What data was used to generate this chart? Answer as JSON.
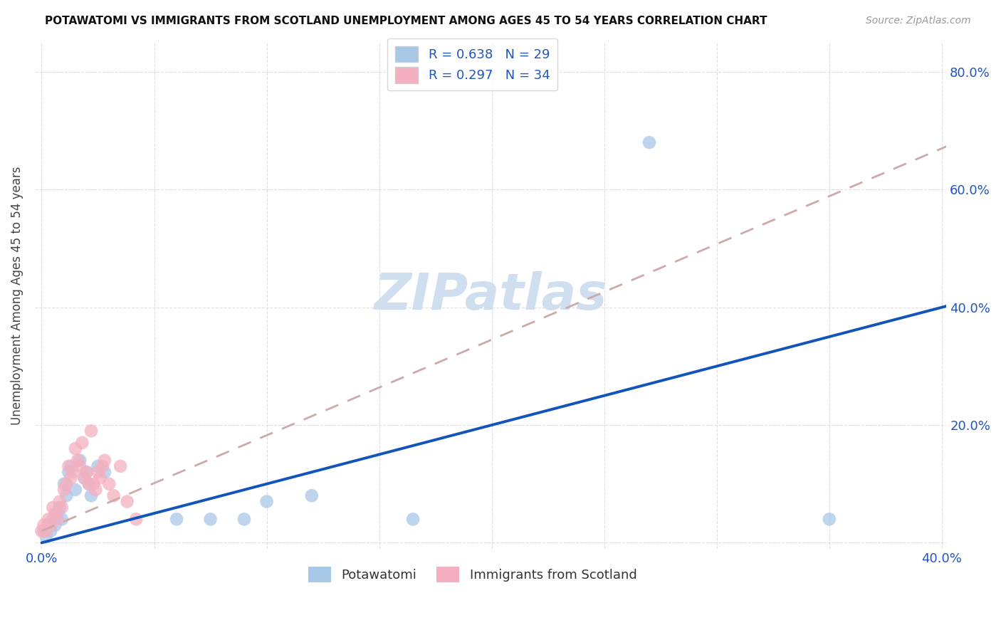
{
  "title": "POTAWATOMI VS IMMIGRANTS FROM SCOTLAND UNEMPLOYMENT AMONG AGES 45 TO 54 YEARS CORRELATION CHART",
  "source": "Source: ZipAtlas.com",
  "ylabel": "Unemployment Among Ages 45 to 54 years",
  "xlim": [
    -0.003,
    0.402
  ],
  "ylim": [
    -0.01,
    0.85
  ],
  "x_ticks": [
    0.0,
    0.05,
    0.1,
    0.15,
    0.2,
    0.25,
    0.3,
    0.35,
    0.4
  ],
  "x_tick_labels": [
    "0.0%",
    "",
    "",
    "",
    "",
    "",
    "",
    "",
    "40.0%"
  ],
  "y_ticks": [
    0.0,
    0.2,
    0.4,
    0.6,
    0.8
  ],
  "y_tick_labels_right": [
    "",
    "20.0%",
    "40.0%",
    "60.0%",
    "80.0%"
  ],
  "potawatomi_R": 0.638,
  "potawatomi_N": 29,
  "scotland_R": 0.297,
  "scotland_N": 34,
  "potawatomi_color": "#a8c8e8",
  "scotland_color": "#f4b0c0",
  "trendline_potawatomi_color": "#1155bb",
  "trendline_scotland_color": "#ccaaaa",
  "watermark_text": "ZIPatlas",
  "watermark_color": "#d0dff0",
  "pot_trendline_x0": 0.0,
  "pot_trendline_y0": 0.0,
  "pot_trendline_x1": 0.4,
  "pot_trendline_y1": 0.4,
  "sco_trendline_x0": 0.0,
  "sco_trendline_y0": 0.02,
  "sco_trendline_x1": 0.4,
  "sco_trendline_y1": 0.67,
  "potawatomi_x": [
    0.001,
    0.002,
    0.003,
    0.004,
    0.005,
    0.006,
    0.007,
    0.008,
    0.009,
    0.01,
    0.011,
    0.012,
    0.013,
    0.015,
    0.017,
    0.019,
    0.02,
    0.021,
    0.022,
    0.025,
    0.028,
    0.06,
    0.075,
    0.09,
    0.1,
    0.12,
    0.165,
    0.27,
    0.35
  ],
  "potawatomi_y": [
    0.02,
    0.01,
    0.03,
    0.02,
    0.04,
    0.03,
    0.05,
    0.06,
    0.04,
    0.1,
    0.08,
    0.12,
    0.13,
    0.09,
    0.14,
    0.11,
    0.12,
    0.1,
    0.08,
    0.13,
    0.12,
    0.04,
    0.04,
    0.04,
    0.07,
    0.08,
    0.04,
    0.68,
    0.04
  ],
  "scotland_x": [
    0.0,
    0.001,
    0.002,
    0.003,
    0.004,
    0.005,
    0.006,
    0.007,
    0.008,
    0.009,
    0.01,
    0.011,
    0.012,
    0.013,
    0.014,
    0.015,
    0.016,
    0.017,
    0.018,
    0.019,
    0.02,
    0.021,
    0.022,
    0.023,
    0.024,
    0.025,
    0.026,
    0.027,
    0.028,
    0.03,
    0.032,
    0.035,
    0.038,
    0.042
  ],
  "scotland_y": [
    0.02,
    0.03,
    0.02,
    0.04,
    0.03,
    0.06,
    0.05,
    0.04,
    0.07,
    0.06,
    0.09,
    0.1,
    0.13,
    0.11,
    0.12,
    0.16,
    0.14,
    0.13,
    0.17,
    0.11,
    0.12,
    0.1,
    0.19,
    0.1,
    0.09,
    0.12,
    0.11,
    0.13,
    0.14,
    0.1,
    0.08,
    0.13,
    0.07,
    0.04
  ]
}
